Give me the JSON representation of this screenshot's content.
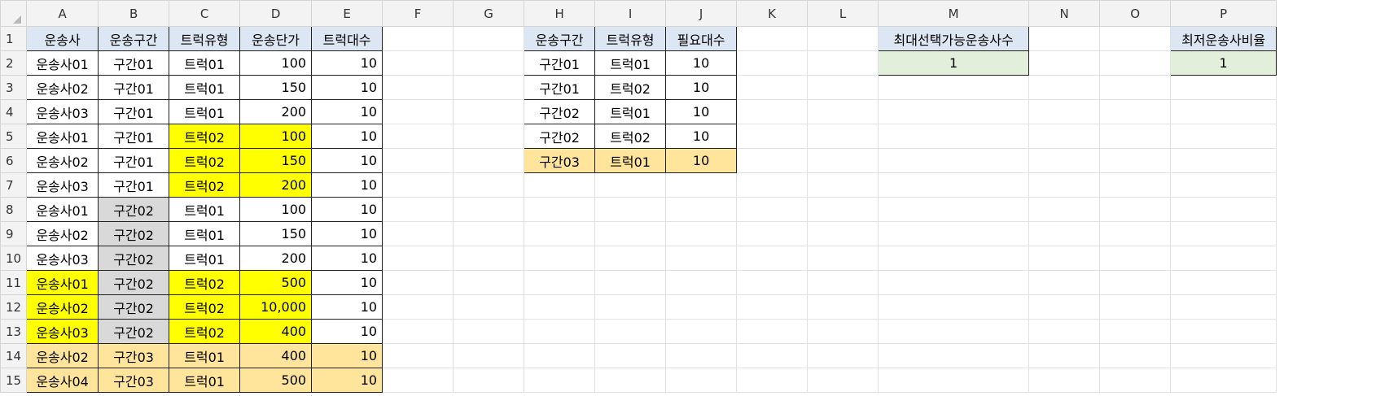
{
  "columns": [
    "A",
    "B",
    "C",
    "D",
    "E",
    "F",
    "G",
    "H",
    "I",
    "J",
    "K",
    "L",
    "M",
    "N",
    "O",
    "P"
  ],
  "rows": [
    "1",
    "2",
    "3",
    "4",
    "5",
    "6",
    "7",
    "8",
    "9",
    "10",
    "11",
    "12",
    "13",
    "14",
    "15"
  ],
  "colors": {
    "header_fill": "#dde6f3",
    "highlight_yellow": "#ffff00",
    "highlight_gray": "#d9d9d9",
    "highlight_orange": "#ffe49c",
    "result_green": "#e2efda"
  },
  "cells": {
    "A1": "운송사",
    "B1": "운송구간",
    "C1": "트럭유형",
    "D1": "운송단가",
    "E1": "트럭대수",
    "A2": "운송사01",
    "B2": "구간01",
    "C2": "트럭01",
    "D2": "100",
    "E2": "10",
    "A3": "운송사02",
    "B3": "구간01",
    "C3": "트럭01",
    "D3": "150",
    "E3": "10",
    "A4": "운송사03",
    "B4": "구간01",
    "C4": "트럭01",
    "D4": "200",
    "E4": "10",
    "A5": "운송사01",
    "B5": "구간01",
    "C5": "트럭02",
    "D5": "100",
    "E5": "10",
    "A6": "운송사02",
    "B6": "구간01",
    "C6": "트럭02",
    "D6": "150",
    "E6": "10",
    "A7": "운송사03",
    "B7": "구간01",
    "C7": "트럭02",
    "D7": "200",
    "E7": "10",
    "A8": "운송사01",
    "B8": "구간02",
    "C8": "트럭01",
    "D8": "100",
    "E8": "10",
    "A9": "운송사02",
    "B9": "구간02",
    "C9": "트럭01",
    "D9": "150",
    "E9": "10",
    "A10": "운송사03",
    "B10": "구간02",
    "C10": "트럭01",
    "D10": "200",
    "E10": "10",
    "A11": "운송사01",
    "B11": "구간02",
    "C11": "트럭02",
    "D11": "500",
    "E11": "10",
    "A12": "운송사02",
    "B12": "구간02",
    "C12": "트럭02",
    "D12": "10,000",
    "E12": "10",
    "A13": "운송사03",
    "B13": "구간02",
    "C13": "트럭02",
    "D13": "400",
    "E13": "10",
    "A14": "운송사02",
    "B14": "구간03",
    "C14": "트럭01",
    "D14": "400",
    "E14": "10",
    "A15": "운송사04",
    "B15": "구간03",
    "C15": "트럭01",
    "D15": "500",
    "E15": "10",
    "H1": "운송구간",
    "I1": "트럭유형",
    "J1": "필요대수",
    "H2": "구간01",
    "I2": "트럭01",
    "J2": "10",
    "H3": "구간01",
    "I3": "트럭02",
    "J3": "10",
    "H4": "구간02",
    "I4": "트럭01",
    "J4": "10",
    "H5": "구간02",
    "I5": "트럭02",
    "J5": "10",
    "H6": "구간03",
    "I6": "트럭01",
    "J6": "10",
    "M1": "최대선택가능운송사수",
    "M2": "1",
    "P1": "최저운송사비율",
    "P2": "1"
  }
}
